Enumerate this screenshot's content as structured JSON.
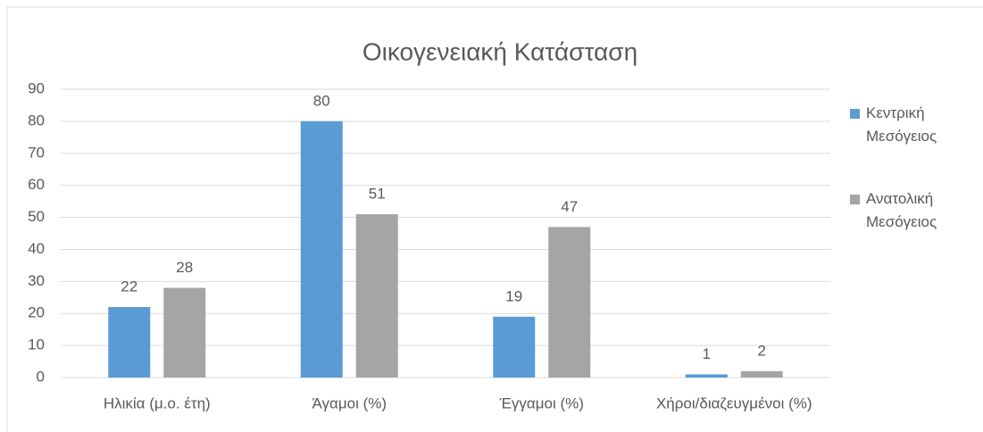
{
  "chart_data": {
    "type": "bar",
    "title": "Οικογενειακή Κατάσταση",
    "categories": [
      "Ηλικία (μ.ο. έτη)",
      "Άγαμοι (%)",
      "Έγγαμοι (%)",
      "Χήροι/διαζευγμένοι (%)"
    ],
    "series": [
      {
        "name": "Κεντρική Μεσόγειος",
        "color": "#5b9bd5",
        "values": [
          22,
          80,
          19,
          1
        ]
      },
      {
        "name": "Ανατολική Μεσόγειος",
        "color": "#a5a5a5",
        "values": [
          28,
          51,
          47,
          2
        ]
      }
    ],
    "ylim": [
      0,
      90
    ],
    "yticks": [
      0,
      10,
      20,
      30,
      40,
      50,
      60,
      70,
      80,
      90
    ],
    "grid": true,
    "legend": "right"
  }
}
